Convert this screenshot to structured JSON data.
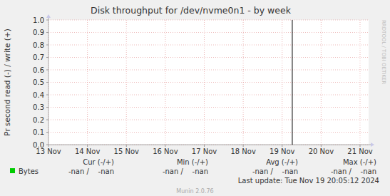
{
  "chart_data": {
    "type": "line",
    "title": "Disk throughput for /dev/nvme0n1 - by week",
    "y_label": "Pr second read (-) / write (+)",
    "side_label": "RRDTOOL / TOBI OETIKER",
    "xlim": [
      13,
      21.22
    ],
    "xticks": [
      {
        "value": 13,
        "label": "13 Nov"
      },
      {
        "value": 14,
        "label": "14 Nov"
      },
      {
        "value": 15,
        "label": "15 Nov"
      },
      {
        "value": 16,
        "label": "16 Nov"
      },
      {
        "value": 17,
        "label": "17 Nov"
      },
      {
        "value": 18,
        "label": "18 Nov"
      },
      {
        "value": 19,
        "label": "19 Nov"
      },
      {
        "value": 20,
        "label": "20 Nov"
      },
      {
        "value": 21,
        "label": "21 Nov"
      }
    ],
    "ylim": [
      0,
      1
    ],
    "yticks": [
      {
        "value": 0,
        "label": "0.0"
      },
      {
        "value": 0.1,
        "label": "0.1"
      },
      {
        "value": 0.2,
        "label": "0.2"
      },
      {
        "value": 0.3,
        "label": "0.3"
      },
      {
        "value": 0.4,
        "label": "0.4"
      },
      {
        "value": 0.5,
        "label": "0.5"
      },
      {
        "value": 0.6,
        "label": "0.6"
      },
      {
        "value": 0.7,
        "label": "0.7"
      },
      {
        "value": 0.8,
        "label": "0.8"
      },
      {
        "value": 0.9,
        "label": "0.9"
      },
      {
        "value": 1,
        "label": "1.0"
      }
    ],
    "grid": true,
    "vline": 19.26,
    "x": [],
    "legend_columns": [
      "Cur (-/+)",
      "Min (-/+)",
      "Avg (-/+)",
      "Max (-/+)"
    ],
    "series": [
      {
        "name": "Bytes",
        "color": "#00cc00",
        "values": [],
        "stats": [
          "-nan /    -nan",
          "-nan /    -nan",
          "-nan /    -nan",
          "-nan /    -nan"
        ]
      }
    ],
    "last_update": "Last update: Tue Nov 19 20:05:12 2024",
    "footer": "Munin 2.0.76"
  }
}
